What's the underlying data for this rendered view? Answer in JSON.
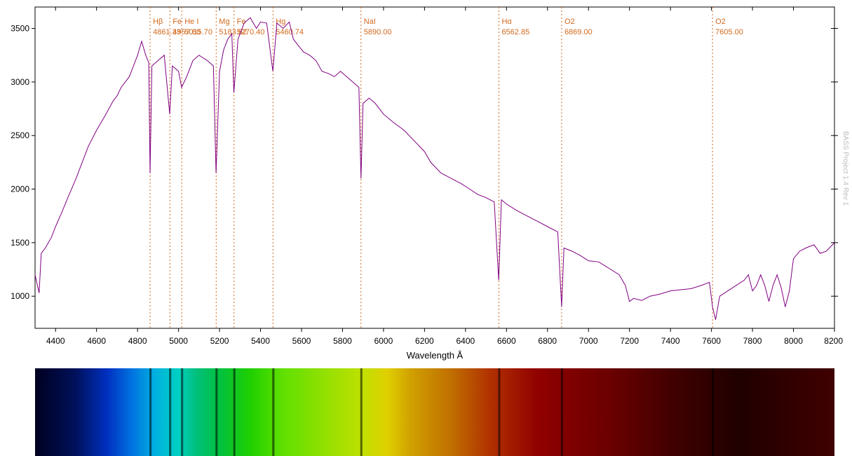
{
  "chart_data": {
    "type": "line",
    "xlabel": "Wavelength Å",
    "ylabel": "",
    "xlim": [
      4300,
      8200
    ],
    "ylim": [
      700,
      3700
    ],
    "x_ticks": [
      4400,
      4600,
      4800,
      5000,
      5200,
      5400,
      5600,
      5800,
      6000,
      6200,
      6400,
      6600,
      6800,
      7000,
      7200,
      7400,
      7600,
      7800,
      8000,
      8200
    ],
    "y_ticks": [
      1000,
      1500,
      2000,
      2500,
      3000,
      3500
    ],
    "watermark": "BASS Project 1.4 Rev 1",
    "line_color": "#800080",
    "marker_color": "#d2691e",
    "spectral_lines": [
      {
        "name": "Hβ",
        "wavelength": "4861.33"
      },
      {
        "name": "Fe",
        "wavelength": "4957.60"
      },
      {
        "name": "He I",
        "wavelength": "5015.70"
      },
      {
        "name": "Mg",
        "wavelength": "5183.62"
      },
      {
        "name": "Fe",
        "wavelength": "5270.40"
      },
      {
        "name": "Hg",
        "wavelength": "5460.74"
      },
      {
        "name": "NaI",
        "wavelength": "5890.00"
      },
      {
        "name": "Hα",
        "wavelength": "6562.85"
      },
      {
        "name": "O2",
        "wavelength": "6869.00"
      },
      {
        "name": "O2",
        "wavelength": "7605.00"
      }
    ],
    "series": [
      {
        "values": [
          [
            4300,
            1200
          ],
          [
            4320,
            1030
          ],
          [
            4330,
            1400
          ],
          [
            4350,
            1450
          ],
          [
            4380,
            1550
          ],
          [
            4400,
            1650
          ],
          [
            4430,
            1780
          ],
          [
            4460,
            1920
          ],
          [
            4500,
            2100
          ],
          [
            4530,
            2250
          ],
          [
            4560,
            2400
          ],
          [
            4600,
            2550
          ],
          [
            4640,
            2680
          ],
          [
            4680,
            2820
          ],
          [
            4700,
            2870
          ],
          [
            4720,
            2950
          ],
          [
            4740,
            3000
          ],
          [
            4760,
            3050
          ],
          [
            4780,
            3150
          ],
          [
            4800,
            3250
          ],
          [
            4820,
            3380
          ],
          [
            4840,
            3250
          ],
          [
            4855,
            3180
          ],
          [
            4861,
            2150
          ],
          [
            4870,
            3150
          ],
          [
            4900,
            3200
          ],
          [
            4930,
            3250
          ],
          [
            4957,
            2700
          ],
          [
            4970,
            3150
          ],
          [
            5000,
            3100
          ],
          [
            5015,
            2950
          ],
          [
            5040,
            3050
          ],
          [
            5070,
            3200
          ],
          [
            5100,
            3250
          ],
          [
            5140,
            3200
          ],
          [
            5170,
            3150
          ],
          [
            5183,
            2150
          ],
          [
            5200,
            3100
          ],
          [
            5220,
            3300
          ],
          [
            5240,
            3400
          ],
          [
            5260,
            3450
          ],
          [
            5270,
            2900
          ],
          [
            5290,
            3400
          ],
          [
            5320,
            3550
          ],
          [
            5350,
            3600
          ],
          [
            5380,
            3500
          ],
          [
            5400,
            3560
          ],
          [
            5430,
            3550
          ],
          [
            5460,
            3100
          ],
          [
            5480,
            3550
          ],
          [
            5510,
            3500
          ],
          [
            5540,
            3560
          ],
          [
            5560,
            3400
          ],
          [
            5580,
            3350
          ],
          [
            5610,
            3280
          ],
          [
            5640,
            3250
          ],
          [
            5670,
            3200
          ],
          [
            5700,
            3100
          ],
          [
            5730,
            3080
          ],
          [
            5760,
            3050
          ],
          [
            5790,
            3100
          ],
          [
            5820,
            3050
          ],
          [
            5850,
            3000
          ],
          [
            5880,
            2950
          ],
          [
            5890,
            2100
          ],
          [
            5900,
            2800
          ],
          [
            5930,
            2850
          ],
          [
            5960,
            2800
          ],
          [
            6000,
            2700
          ],
          [
            6050,
            2620
          ],
          [
            6100,
            2550
          ],
          [
            6150,
            2450
          ],
          [
            6200,
            2350
          ],
          [
            6230,
            2250
          ],
          [
            6280,
            2150
          ],
          [
            6330,
            2100
          ],
          [
            6380,
            2050
          ],
          [
            6420,
            2000
          ],
          [
            6460,
            1950
          ],
          [
            6500,
            1920
          ],
          [
            6540,
            1880
          ],
          [
            6562,
            1150
          ],
          [
            6575,
            1900
          ],
          [
            6600,
            1860
          ],
          [
            6650,
            1800
          ],
          [
            6700,
            1750
          ],
          [
            6750,
            1700
          ],
          [
            6800,
            1650
          ],
          [
            6850,
            1600
          ],
          [
            6869,
            900
          ],
          [
            6880,
            1450
          ],
          [
            6920,
            1420
          ],
          [
            6960,
            1380
          ],
          [
            7000,
            1330
          ],
          [
            7050,
            1320
          ],
          [
            7100,
            1260
          ],
          [
            7150,
            1200
          ],
          [
            7180,
            1100
          ],
          [
            7200,
            950
          ],
          [
            7220,
            980
          ],
          [
            7260,
            960
          ],
          [
            7300,
            1000
          ],
          [
            7350,
            1020
          ],
          [
            7400,
            1050
          ],
          [
            7450,
            1060
          ],
          [
            7500,
            1070
          ],
          [
            7550,
            1100
          ],
          [
            7590,
            1130
          ],
          [
            7605,
            900
          ],
          [
            7620,
            780
          ],
          [
            7640,
            1000
          ],
          [
            7680,
            1050
          ],
          [
            7720,
            1100
          ],
          [
            7760,
            1150
          ],
          [
            7780,
            1200
          ],
          [
            7800,
            1050
          ],
          [
            7820,
            1100
          ],
          [
            7840,
            1200
          ],
          [
            7860,
            1100
          ],
          [
            7880,
            950
          ],
          [
            7900,
            1100
          ],
          [
            7920,
            1200
          ],
          [
            7940,
            1080
          ],
          [
            7960,
            900
          ],
          [
            7980,
            1050
          ],
          [
            8000,
            1350
          ],
          [
            8030,
            1420
          ],
          [
            8060,
            1450
          ],
          [
            8100,
            1480
          ],
          [
            8130,
            1400
          ],
          [
            8160,
            1420
          ],
          [
            8200,
            1500
          ]
        ]
      }
    ]
  }
}
